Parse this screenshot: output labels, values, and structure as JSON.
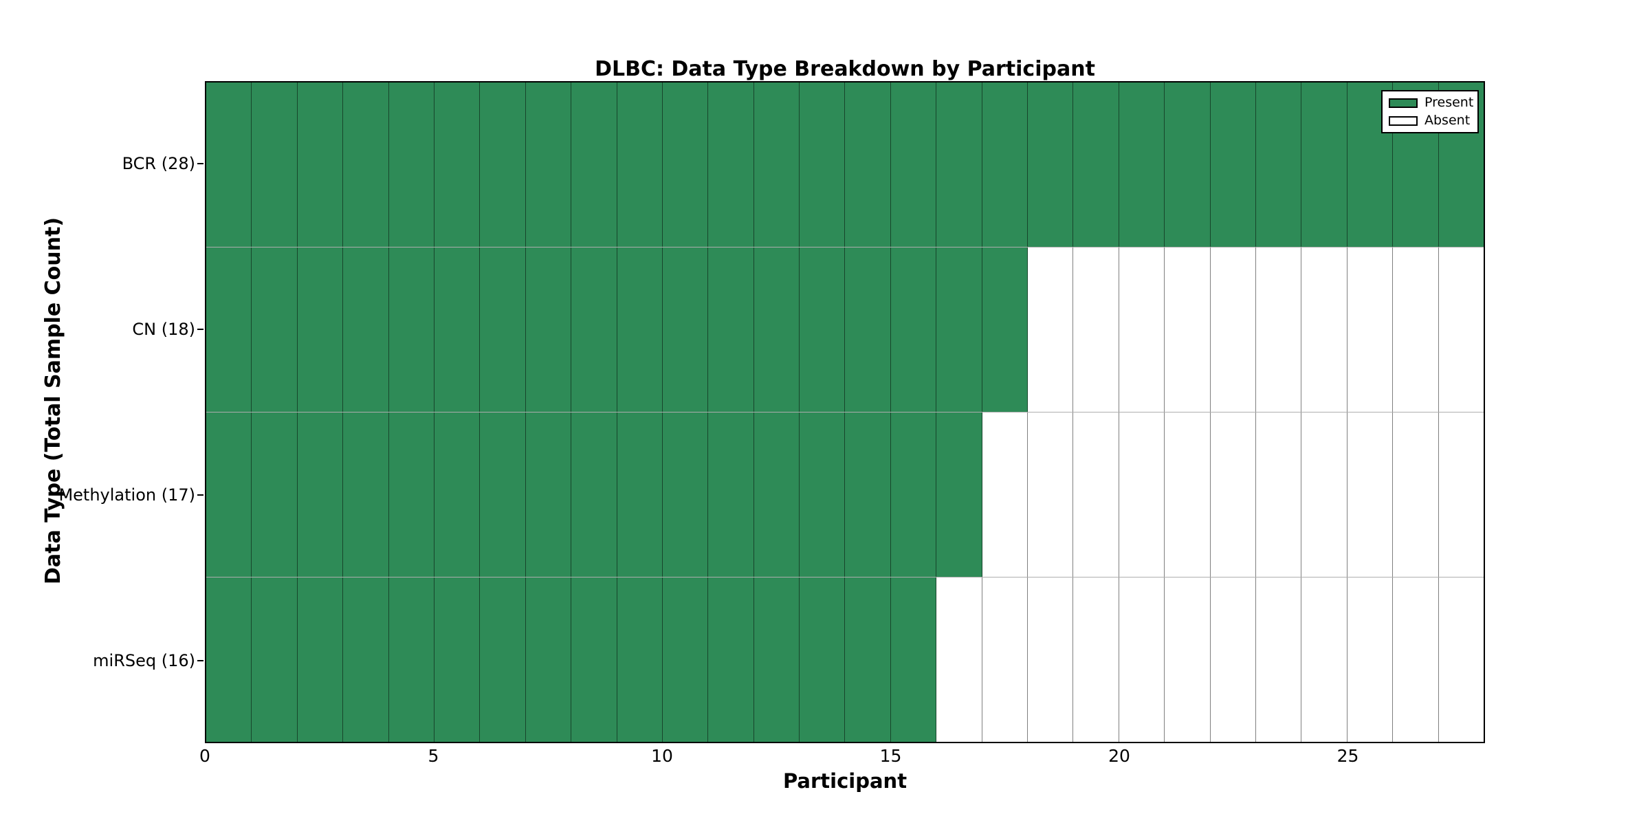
{
  "chart_data": {
    "type": "heatmap",
    "title": "DLBC: Data Type Breakdown by Participant",
    "xlabel": "Participant",
    "ylabel": "Data Type (Total Sample Count)",
    "x_range": [
      0,
      28
    ],
    "n_participants": 28,
    "x_ticks": [
      0,
      5,
      10,
      15,
      20,
      25
    ],
    "rows": [
      {
        "label": "BCR (28)",
        "data_type": "BCR",
        "total_samples": 28,
        "present_count": 28,
        "absent_count": 0
      },
      {
        "label": "CN (18)",
        "data_type": "CN",
        "total_samples": 18,
        "present_count": 18,
        "absent_count": 10
      },
      {
        "label": "Methylation (17)",
        "data_type": "Methylation",
        "total_samples": 17,
        "present_count": 17,
        "absent_count": 11
      },
      {
        "label": "miRSeq (16)",
        "data_type": "miRSeq",
        "total_samples": 16,
        "present_count": 16,
        "absent_count": 12
      }
    ],
    "legend": {
      "position": "upper right",
      "entries": [
        {
          "label": "Present",
          "color": "#2E8B57"
        },
        {
          "label": "Absent",
          "color": "#FFFFFF"
        }
      ]
    },
    "colors": {
      "present": "#2E8B57",
      "absent": "#FFFFFF",
      "frame": "#000000",
      "grid_vertical": "rgba(0,0,0,0.5)",
      "grid_horizontal": "rgba(0,0,0,0.32)"
    },
    "grid": true,
    "layout": "presence/absence matrix; rows = data types sorted by sample count desc, columns = participants 0-27; a row is green (present) for participants 0..count-1 and white (absent) afterwards"
  }
}
